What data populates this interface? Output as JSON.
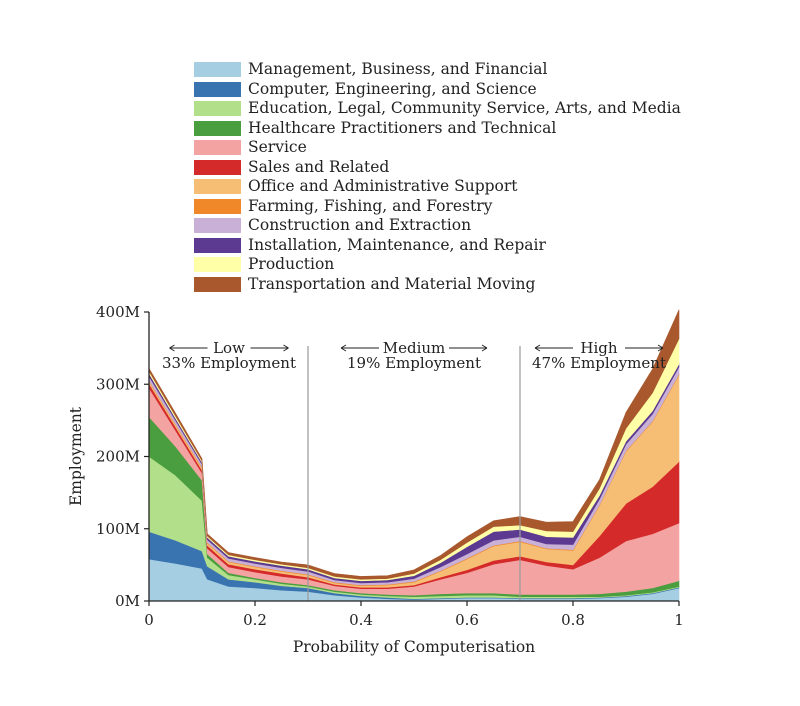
{
  "chart_data": {
    "type": "area",
    "stacked": true,
    "xlabel": "Probability of Computerisation",
    "ylabel": "Employment",
    "xlim": [
      0,
      1
    ],
    "ylim": [
      0,
      400
    ],
    "x_ticks": [
      "0",
      "0.2",
      "0.4",
      "0.6",
      "0.8",
      "1"
    ],
    "y_ticks": [
      "0M",
      "100M",
      "200M",
      "300M",
      "400M"
    ],
    "legend_position": "top",
    "grid": false,
    "boundaries": [
      0.3,
      0.7
    ],
    "regions": [
      {
        "label": "Low",
        "employment": "33% Employment"
      },
      {
        "label": "Medium",
        "employment": "19% Employment"
      },
      {
        "label": "High",
        "employment": "47% Employment"
      }
    ],
    "x": [
      0,
      0.05,
      0.1,
      0.11,
      0.15,
      0.2,
      0.25,
      0.3,
      0.35,
      0.4,
      0.45,
      0.5,
      0.55,
      0.6,
      0.65,
      0.7,
      0.75,
      0.8,
      0.85,
      0.9,
      0.95,
      1.0
    ],
    "series": [
      {
        "name": "Management, Business, and Financial",
        "color": "#a6cee3",
        "values": [
          58,
          52,
          45,
          30,
          20,
          18,
          15,
          13,
          8,
          5,
          3,
          2,
          3,
          4,
          4,
          3,
          3,
          3,
          4,
          6,
          10,
          18
        ]
      },
      {
        "name": "Computer, Engineering, and Science",
        "color": "#3a74b0",
        "values": [
          38,
          32,
          24,
          18,
          10,
          8,
          6,
          5,
          3,
          2,
          2,
          1,
          1,
          1,
          1,
          1,
          1,
          1,
          1,
          1,
          1,
          1
        ]
      },
      {
        "name": "Education, Legal, Community Service, Arts, and Media",
        "color": "#b2df8a",
        "values": [
          104,
          90,
          70,
          12,
          6,
          4,
          3,
          2,
          2,
          2,
          2,
          3,
          3,
          3,
          3,
          2,
          2,
          2,
          1,
          1,
          1,
          1
        ]
      },
      {
        "name": "Healthcare Practitioners and Technical",
        "color": "#4a9e3f",
        "values": [
          55,
          40,
          28,
          5,
          3,
          2,
          2,
          2,
          2,
          2,
          2,
          2,
          3,
          3,
          3,
          3,
          3,
          3,
          4,
          5,
          6,
          8
        ]
      },
      {
        "name": "Service",
        "color": "#f4a3a3",
        "values": [
          40,
          22,
          10,
          8,
          8,
          8,
          8,
          8,
          6,
          6,
          8,
          12,
          20,
          28,
          40,
          48,
          40,
          35,
          50,
          70,
          75,
          80
        ]
      },
      {
        "name": "Sales and Related",
        "color": "#d52a2a",
        "values": [
          6,
          5,
          4,
          4,
          4,
          4,
          4,
          3,
          2,
          2,
          2,
          2,
          3,
          4,
          5,
          5,
          5,
          6,
          30,
          52,
          65,
          85
        ]
      },
      {
        "name": "Office and Administrative Support",
        "color": "#f6bd74",
        "values": [
          3,
          3,
          3,
          3,
          3,
          3,
          3,
          3,
          2,
          2,
          3,
          4,
          8,
          15,
          20,
          20,
          18,
          20,
          42,
          72,
          90,
          120
        ]
      },
      {
        "name": "Farming, Fishing, and Forestry",
        "color": "#f0882a",
        "values": [
          1,
          1,
          1,
          1,
          1,
          1,
          1,
          1,
          1,
          1,
          1,
          1,
          1,
          1,
          1,
          1,
          1,
          1,
          1,
          1,
          1,
          1
        ]
      },
      {
        "name": "Construction and Extraction",
        "color": "#c9b0d6",
        "values": [
          6,
          5,
          4,
          4,
          4,
          4,
          4,
          4,
          3,
          3,
          3,
          4,
          5,
          6,
          7,
          6,
          6,
          7,
          8,
          9,
          10,
          10
        ]
      },
      {
        "name": "Installation, Maintenance, and Repair",
        "color": "#5c3a92",
        "values": [
          4,
          3,
          3,
          3,
          3,
          3,
          3,
          3,
          3,
          3,
          3,
          4,
          6,
          10,
          12,
          10,
          10,
          10,
          5,
          4,
          4,
          4
        ]
      },
      {
        "name": "Production",
        "color": "#ffffa8",
        "values": [
          3,
          3,
          2,
          2,
          2,
          2,
          2,
          2,
          2,
          2,
          2,
          3,
          4,
          6,
          7,
          6,
          8,
          8,
          10,
          18,
          25,
          35
        ]
      },
      {
        "name": "Transportation and Material Moving",
        "color": "#a8582c",
        "values": [
          4,
          4,
          3,
          3,
          3,
          3,
          3,
          4,
          4,
          4,
          4,
          5,
          6,
          8,
          8,
          12,
          12,
          14,
          12,
          22,
          33,
          40
        ]
      }
    ]
  }
}
